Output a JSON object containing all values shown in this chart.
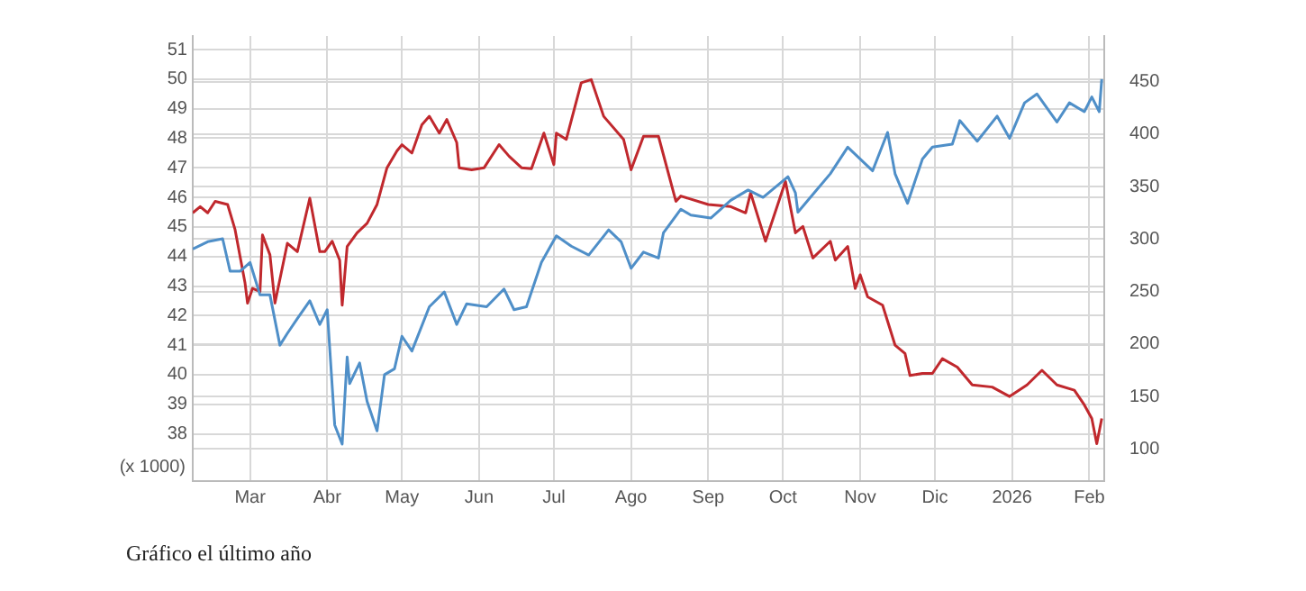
{
  "chart_data": {
    "type": "line",
    "ylabel": "(x 1000)",
    "annotations": [
      "Gráfico el último año"
    ],
    "xlim": [
      "2025-02-06",
      "2026-02-07"
    ],
    "xticks": [
      {
        "value": "2025-03-01",
        "label": "Mar"
      },
      {
        "value": "2025-04-01",
        "label": "Abr"
      },
      {
        "value": "2025-05-01",
        "label": "May"
      },
      {
        "value": "2025-06-01",
        "label": "Jun"
      },
      {
        "value": "2025-07-01",
        "label": "Jul"
      },
      {
        "value": "2025-08-01",
        "label": "Ago"
      },
      {
        "value": "2025-09-01",
        "label": "Sep"
      },
      {
        "value": "2025-10-01",
        "label": "Oct"
      },
      {
        "value": "2025-11-01",
        "label": "Nov"
      },
      {
        "value": "2025-12-01",
        "label": "Dic"
      },
      {
        "value": "2026-01-01",
        "label": "2026"
      },
      {
        "value": "2026-02-01",
        "label": "Feb"
      }
    ],
    "ylim": [
      36.4,
      51.46
    ],
    "yticks": [
      38,
      39,
      40,
      41,
      42,
      43,
      44,
      45,
      46,
      47,
      48,
      49,
      50,
      51
    ],
    "y2lim": [
      69.4,
      493.5
    ],
    "y2ticks": [
      100,
      150,
      200,
      250,
      300,
      350,
      400,
      450
    ],
    "grid": true,
    "series": [
      {
        "color": "#4f8fc8",
        "x": [
          "2025-02-06",
          "2025-02-12",
          "2025-02-18",
          "2025-02-21",
          "2025-02-25",
          "2025-03-01",
          "2025-03-05",
          "2025-03-09",
          "2025-03-13",
          "2025-03-16",
          "2025-03-20",
          "2025-03-25",
          "2025-03-29",
          "2025-04-01",
          "2025-04-04",
          "2025-04-07",
          "2025-04-09",
          "2025-04-10",
          "2025-04-14",
          "2025-04-17",
          "2025-04-21",
          "2025-04-24",
          "2025-04-28",
          "2025-05-01",
          "2025-05-05",
          "2025-05-12",
          "2025-05-18",
          "2025-05-23",
          "2025-05-27",
          "2025-06-04",
          "2025-06-11",
          "2025-06-15",
          "2025-06-20",
          "2025-06-26",
          "2025-07-02",
          "2025-07-08",
          "2025-07-15",
          "2025-07-23",
          "2025-07-28",
          "2025-08-01",
          "2025-08-06",
          "2025-08-12",
          "2025-08-14",
          "2025-08-21",
          "2025-08-25",
          "2025-09-02",
          "2025-09-10",
          "2025-09-17",
          "2025-09-23",
          "2025-10-03",
          "2025-10-06",
          "2025-10-07",
          "2025-10-14",
          "2025-10-20",
          "2025-10-27",
          "2025-11-06",
          "2025-11-12",
          "2025-11-15",
          "2025-11-20",
          "2025-11-26",
          "2025-11-30",
          "2025-12-08",
          "2025-12-11",
          "2025-12-18",
          "2025-12-26",
          "2025-12-31",
          "2026-01-06",
          "2026-01-11",
          "2026-01-19",
          "2026-01-24",
          "2026-01-30",
          "2026-02-02",
          "2026-02-05",
          "2026-02-06"
        ],
        "values": [
          44.25,
          44.5,
          44.6,
          43.5,
          43.5,
          43.8,
          42.7,
          42.7,
          41.0,
          41.4,
          41.9,
          42.5,
          41.7,
          42.2,
          38.3,
          37.65,
          40.6,
          39.7,
          40.4,
          39.1,
          38.1,
          40.0,
          40.2,
          41.3,
          40.8,
          42.3,
          42.8,
          41.7,
          42.4,
          42.3,
          42.9,
          42.2,
          42.3,
          43.8,
          44.7,
          44.35,
          44.05,
          44.9,
          44.5,
          43.6,
          44.15,
          43.95,
          44.8,
          45.6,
          45.4,
          45.3,
          45.9,
          46.25,
          46.0,
          46.7,
          46.15,
          45.5,
          46.2,
          46.8,
          47.7,
          46.9,
          48.2,
          46.8,
          45.8,
          47.3,
          47.7,
          47.8,
          48.6,
          47.9,
          48.75,
          48.0,
          49.2,
          49.5,
          48.55,
          49.2,
          48.9,
          49.4,
          48.9,
          50.0
        ]
      },
      {
        "color": "#c0282d",
        "axis": "y2",
        "x": [
          "2025-02-06",
          "2025-02-09",
          "2025-02-12",
          "2025-02-15",
          "2025-02-20",
          "2025-02-23",
          "2025-02-27",
          "2025-02-28",
          "2025-03-02",
          "2025-03-05",
          "2025-03-06",
          "2025-03-09",
          "2025-03-11",
          "2025-03-16",
          "2025-03-20",
          "2025-03-25",
          "2025-03-29",
          "2025-03-31",
          "2025-04-03",
          "2025-04-06",
          "2025-04-07",
          "2025-04-09",
          "2025-04-13",
          "2025-04-17",
          "2025-04-21",
          "2025-04-25",
          "2025-04-29",
          "2025-05-01",
          "2025-05-05",
          "2025-05-09",
          "2025-05-12",
          "2025-05-16",
          "2025-05-19",
          "2025-05-23",
          "2025-05-24",
          "2025-05-29",
          "2025-06-03",
          "2025-06-09",
          "2025-06-13",
          "2025-06-18",
          "2025-06-22",
          "2025-06-27",
          "2025-07-01",
          "2025-07-02",
          "2025-07-06",
          "2025-07-12",
          "2025-07-16",
          "2025-07-21",
          "2025-07-29",
          "2025-08-01",
          "2025-08-06",
          "2025-08-12",
          "2025-08-19",
          "2025-08-21",
          "2025-09-01",
          "2025-09-10",
          "2025-09-16",
          "2025-09-18",
          "2025-09-24",
          "2025-10-02",
          "2025-10-06",
          "2025-10-09",
          "2025-10-13",
          "2025-10-20",
          "2025-10-22",
          "2025-10-27",
          "2025-10-30",
          "2025-11-01",
          "2025-11-04",
          "2025-11-10",
          "2025-11-15",
          "2025-11-19",
          "2025-11-21",
          "2025-11-26",
          "2025-11-30",
          "2025-12-04",
          "2025-12-10",
          "2025-12-16",
          "2025-12-24",
          "2025-12-31",
          "2026-01-07",
          "2026-01-13",
          "2026-01-19",
          "2026-01-26",
          "2026-01-30",
          "2026-02-02",
          "2026-02-04",
          "2026-02-06"
        ],
        "values": [
          325,
          331,
          325,
          336,
          333,
          309,
          258,
          239,
          253,
          250,
          304,
          285,
          239,
          296,
          288,
          339,
          288,
          288,
          298,
          280,
          237,
          293,
          306,
          315,
          333,
          368,
          384,
          390,
          382,
          409,
          417,
          401,
          414,
          392,
          368,
          366,
          368,
          390,
          379,
          368,
          367,
          401,
          371,
          401,
          395,
          449,
          452,
          417,
          395,
          366,
          398,
          398,
          336,
          341,
          333,
          331,
          325,
          344,
          298,
          355,
          306,
          312,
          282,
          298,
          280,
          293,
          253,
          266,
          245,
          237,
          199,
          191,
          170,
          172,
          172,
          186,
          178,
          161,
          159,
          150,
          161,
          175,
          161,
          156,
          142,
          129,
          105,
          129
        ]
      }
    ]
  }
}
